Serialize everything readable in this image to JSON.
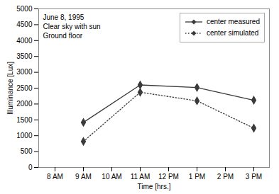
{
  "chart_data": {
    "type": "line",
    "categories": [
      "8 AM",
      "9 AM",
      "10 AM",
      "11 AM",
      "12 PM",
      "1 PM",
      "2 PM",
      "3 PM"
    ],
    "xlabel": "Time [hrs.]",
    "ylabel": "Illuminance [Lux]",
    "annotations": [
      "June 8, 1995\nClear sky with sun\nGround floor"
    ],
    "series": [
      {
        "name": "center measured",
        "color": "#3a3a3a",
        "marker": "diamond",
        "line_style": "solid",
        "x": [
          "9 AM",
          "11 AM",
          "1 PM",
          "3 PM"
        ],
        "values": [
          1420,
          2600,
          2520,
          2120
        ]
      },
      {
        "name": "center simulated",
        "color": "#3a3a3a",
        "marker": "diamond",
        "line_style": "dotted",
        "x": [
          "9 AM",
          "11 AM",
          "1 PM",
          "3 PM"
        ],
        "values": [
          820,
          2370,
          2100,
          1240
        ]
      }
    ],
    "ylim": [
      0,
      5000
    ],
    "yticks": [
      0,
      500,
      1000,
      1500,
      2000,
      2500,
      3000,
      3500,
      4000,
      4500,
      5000
    ],
    "grid": false,
    "legend": "upper right"
  }
}
